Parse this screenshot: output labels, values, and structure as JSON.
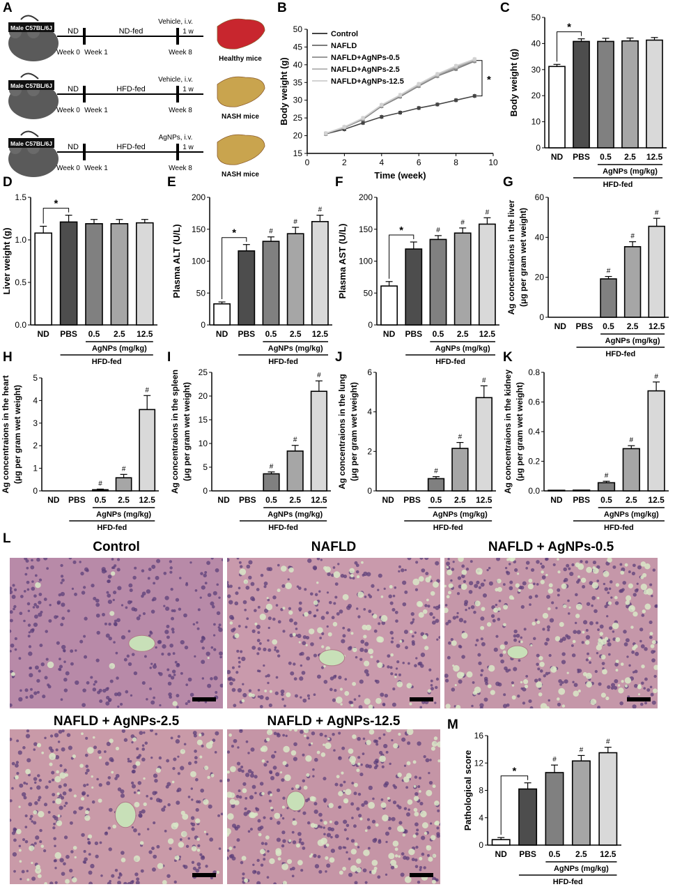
{
  "schematic": {
    "letter": "A",
    "rows": [
      {
        "mouse_label": "Male C57BL/6J",
        "diet_short": "ND",
        "diet_fed": "ND-fed",
        "treatment": "Vehicle, i.v.",
        "duration": "1 w",
        "week0": "Week 0",
        "week1": "Week 1",
        "week8": "Week 8",
        "outcome": "Healthy mice",
        "liver_color": "#c8262e"
      },
      {
        "mouse_label": "Male C57BL/6J",
        "diet_short": "ND",
        "diet_fed": "HFD-fed",
        "treatment": "Vehicle, i.v.",
        "duration": "1 w",
        "week0": "Week 0",
        "week1": "Week 1",
        "week8": "Week 8",
        "outcome": "NASH mice",
        "liver_color": "#c9a44e"
      },
      {
        "mouse_label": "Male C57BL/6J",
        "diet_short": "ND",
        "diet_fed": "HFD-fed",
        "treatment": "AgNPs, i.v.",
        "duration": "1 w",
        "week0": "Week 0",
        "week1": "Week 1",
        "week8": "Week 8",
        "outcome": "NASH mice",
        "liver_color": "#c9a44e"
      }
    ]
  },
  "common": {
    "categories": [
      "ND",
      "PBS",
      "0.5",
      "2.5",
      "12.5"
    ],
    "group_label": "AgNPs (mg/kg)",
    "diet_label": "HFD-fed",
    "bar_colors": [
      "#ffffff",
      "#4d4d4d",
      "#808080",
      "#a6a6a6",
      "#d9d9d9"
    ],
    "star": "*",
    "hash": "#"
  },
  "chart_data": [
    {
      "id": "B",
      "type": "line",
      "xlabel": "Time (week)",
      "ylabel": "Body weight (g)",
      "xlim": [
        0,
        10
      ],
      "ylim": [
        15,
        50
      ],
      "xticks": [
        0,
        2,
        4,
        6,
        8,
        10
      ],
      "yticks": [
        15,
        20,
        25,
        30,
        35,
        40,
        45,
        50
      ],
      "legend": [
        "Control",
        "NAFLD",
        "NAFLD+AgNPs-0.5",
        "NAFLD+AgNPs-2.5",
        "NAFLD+AgNPs-12.5"
      ],
      "legend_position": "top-left",
      "series": [
        {
          "name": "Control",
          "color": "#444444",
          "x": [
            1,
            2,
            3,
            4,
            5,
            6,
            7,
            8,
            9
          ],
          "y": [
            20.5,
            21.8,
            23.6,
            25.3,
            26.5,
            27.8,
            28.8,
            30.0,
            31.2
          ]
        },
        {
          "name": "NAFLD",
          "color": "#7a7a7a",
          "x": [
            1,
            2,
            3,
            4,
            5,
            6,
            7,
            8,
            9
          ],
          "y": [
            20.6,
            22.3,
            24.6,
            28.3,
            31.0,
            34.0,
            36.8,
            38.8,
            41.0
          ]
        },
        {
          "name": "NAFLD+AgNPs-0.5",
          "color": "#9a9a9a",
          "x": [
            1,
            2,
            3,
            4,
            5,
            6,
            7,
            8,
            9
          ],
          "y": [
            20.6,
            22.4,
            24.8,
            28.5,
            31.2,
            34.2,
            37.0,
            39.2,
            41.2
          ]
        },
        {
          "name": "NAFLD+AgNPs-2.5",
          "color": "#b8b8b8",
          "x": [
            1,
            2,
            3,
            4,
            5,
            6,
            7,
            8,
            9
          ],
          "y": [
            20.6,
            22.4,
            24.9,
            28.6,
            31.4,
            34.4,
            37.2,
            39.5,
            41.4
          ]
        },
        {
          "name": "NAFLD+AgNPs-12.5",
          "color": "#d2d2d2",
          "x": [
            1,
            2,
            3,
            4,
            5,
            6,
            7,
            8,
            9
          ],
          "y": [
            20.7,
            22.5,
            25.0,
            28.7,
            31.5,
            34.6,
            37.4,
            39.7,
            41.6
          ]
        }
      ],
      "annotation": "*"
    },
    {
      "id": "C",
      "type": "bar",
      "ylabel": "Body weight (g)",
      "ylim": [
        0,
        50
      ],
      "yticks": [
        0,
        10,
        20,
        30,
        40,
        50
      ],
      "values": [
        31.2,
        40.8,
        40.8,
        41.0,
        41.3
      ],
      "errors": [
        0.8,
        1.0,
        1.2,
        1.1,
        1.0
      ],
      "star_between": [
        0,
        1
      ],
      "hash_on": []
    },
    {
      "id": "D",
      "type": "bar",
      "ylabel": "Liver weight (g)",
      "ylim": [
        0,
        1.5
      ],
      "yticks": [
        0.0,
        0.5,
        1.0,
        1.5
      ],
      "tick_decimals": 1,
      "values": [
        1.08,
        1.21,
        1.19,
        1.19,
        1.2
      ],
      "errors": [
        0.08,
        0.08,
        0.05,
        0.05,
        0.04
      ],
      "star_between": [
        0,
        1
      ],
      "hash_on": []
    },
    {
      "id": "E",
      "type": "bar",
      "ylabel": "Plasma ALT (U/L)",
      "ylim": [
        0,
        200
      ],
      "yticks": [
        0,
        50,
        100,
        150,
        200
      ],
      "values": [
        33,
        116,
        131,
        143,
        162
      ],
      "errors": [
        3,
        10,
        7,
        10,
        10
      ],
      "star_between": [
        0,
        1
      ],
      "hash_on": [
        2,
        3,
        4
      ]
    },
    {
      "id": "F",
      "type": "bar",
      "ylabel": "Plasma AST (U/L)",
      "ylim": [
        0,
        200
      ],
      "yticks": [
        0,
        50,
        100,
        150,
        200
      ],
      "values": [
        61,
        119,
        134,
        144,
        158
      ],
      "errors": [
        7,
        11,
        6,
        8,
        10
      ],
      "star_between": [
        0,
        1
      ],
      "hash_on": [
        2,
        3,
        4
      ]
    },
    {
      "id": "G",
      "type": "bar",
      "ylabel": "Ag concentraions in the liver",
      "ylabel2": "(μg per gram wet weight)",
      "ylim": [
        0,
        60
      ],
      "yticks": [
        0,
        20,
        40,
        60
      ],
      "values": [
        0,
        0,
        19.2,
        35.3,
        45.5
      ],
      "errors": [
        0,
        0,
        1.2,
        2.5,
        4.0
      ],
      "star_between": null,
      "hash_on": [
        2,
        3,
        4
      ]
    },
    {
      "id": "H",
      "type": "bar",
      "ylabel": "Ag concentraions in the heart",
      "ylabel2": "(μg per gram wet weight)",
      "ylim": [
        0,
        5
      ],
      "yticks": [
        0,
        1,
        2,
        3,
        4,
        5
      ],
      "values": [
        0,
        0,
        0.05,
        0.58,
        3.6
      ],
      "errors": [
        0,
        0,
        0.03,
        0.15,
        0.62
      ],
      "star_between": null,
      "hash_on": [
        2,
        3,
        4
      ]
    },
    {
      "id": "I",
      "type": "bar",
      "ylabel": "Ag concentraions in the spleen",
      "ylabel2": "(μg per gram wet weight)",
      "ylim": [
        0,
        25
      ],
      "yticks": [
        0,
        5,
        10,
        15,
        20,
        25
      ],
      "values": [
        0,
        0,
        3.6,
        8.4,
        21.0
      ],
      "errors": [
        0,
        0,
        0.4,
        1.2,
        2.2
      ],
      "star_between": null,
      "hash_on": [
        2,
        3,
        4
      ]
    },
    {
      "id": "J",
      "type": "bar",
      "ylabel": "Ag concentraions in the lung",
      "ylabel2": "(μg per gram wet weight)",
      "ylim": [
        0,
        6
      ],
      "yticks": [
        0,
        2,
        4,
        6
      ],
      "values": [
        0,
        0,
        0.62,
        2.15,
        4.72
      ],
      "errors": [
        0,
        0,
        0.1,
        0.3,
        0.6
      ],
      "star_between": null,
      "hash_on": [
        2,
        3,
        4
      ]
    },
    {
      "id": "K",
      "type": "bar",
      "ylabel": "Ag concentraions in the kidney",
      "ylabel2": "(μg per gram wet weight)",
      "ylim": [
        0,
        0.8
      ],
      "yticks": [
        0.0,
        0.2,
        0.4,
        0.6,
        0.8
      ],
      "tick_decimals": 1,
      "values": [
        0.004,
        0.005,
        0.055,
        0.285,
        0.675
      ],
      "errors": [
        0,
        0,
        0.01,
        0.02,
        0.06
      ],
      "star_between": null,
      "hash_on": [
        2,
        3,
        4
      ]
    },
    {
      "id": "M",
      "type": "bar",
      "ylabel": "Pathological score",
      "ylim": [
        0,
        16
      ],
      "yticks": [
        0,
        4,
        8,
        12,
        16
      ],
      "values": [
        0.8,
        8.2,
        10.6,
        12.3,
        13.5
      ],
      "errors": [
        0.3,
        0.9,
        1.1,
        0.8,
        0.8
      ],
      "star_between": [
        0,
        1
      ],
      "hash_on": [
        2,
        3,
        4
      ]
    }
  ],
  "histology": {
    "letter": "L",
    "images": [
      {
        "title": "Control",
        "tint": "#b88aa8",
        "lipid": "low"
      },
      {
        "title": "NAFLD",
        "tint": "#c99aac",
        "lipid": "mid"
      },
      {
        "title": "NAFLD + AgNPs-0.5",
        "tint": "#c597a9",
        "lipid": "high"
      },
      {
        "title": "NAFLD + AgNPs-2.5",
        "tint": "#c99aa8",
        "lipid": "mid"
      },
      {
        "title": "NAFLD + AgNPs-12.5",
        "tint": "#c595a6",
        "lipid": "high"
      }
    ]
  }
}
